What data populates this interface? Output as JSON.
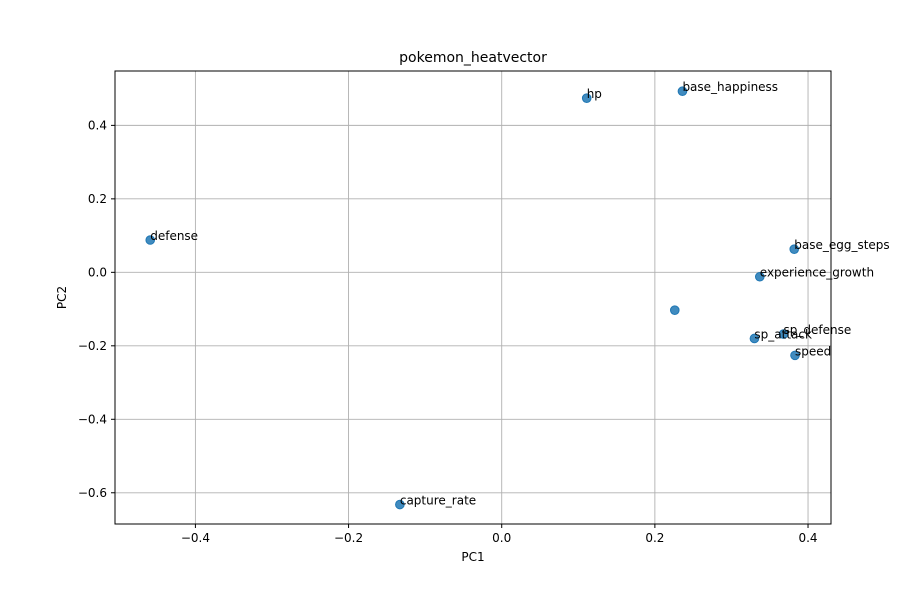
{
  "chart_data": {
    "type": "scatter",
    "title": "pokemon_heatvector",
    "xlabel": "PC1",
    "ylabel": "PC2",
    "xlim": [
      -0.505,
      0.43
    ],
    "ylim": [
      -0.685,
      0.548
    ],
    "grid": true,
    "point_color": "#1f77b4",
    "x_ticks": [
      -0.4,
      -0.2,
      0.0,
      0.2,
      0.4
    ],
    "x_tick_labels": [
      "−0.4",
      "−0.2",
      "0.0",
      "0.2",
      "0.4"
    ],
    "y_ticks": [
      -0.6,
      -0.4,
      -0.2,
      0.0,
      0.2,
      0.4
    ],
    "y_tick_labels": [
      "−0.6",
      "−0.4",
      "−0.2",
      "0.0",
      "0.2",
      "0.4"
    ],
    "points": [
      {
        "label": "hp",
        "x": 0.111,
        "y": 0.474
      },
      {
        "label": "base_happiness",
        "x": 0.236,
        "y": 0.493
      },
      {
        "label": "defense",
        "x": -0.459,
        "y": 0.088
      },
      {
        "label": "base_egg_steps",
        "x": 0.382,
        "y": 0.063
      },
      {
        "label": "experience_growth",
        "x": 0.337,
        "y": -0.012
      },
      {
        "label": "",
        "x": 0.226,
        "y": -0.103
      },
      {
        "label": "sp_defense",
        "x": 0.368,
        "y": -0.168
      },
      {
        "label": "sp_attack",
        "x": 0.33,
        "y": -0.18
      },
      {
        "label": "speed",
        "x": 0.383,
        "y": -0.226
      },
      {
        "label": "capture_rate",
        "x": -0.133,
        "y": -0.632
      }
    ]
  }
}
